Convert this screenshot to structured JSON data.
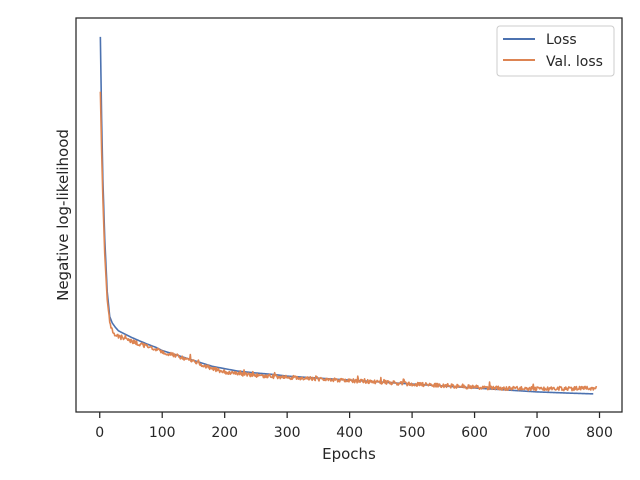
{
  "chart_data": {
    "type": "line",
    "title": "",
    "xlabel": "Epochs",
    "ylabel": "Negative log-likelihood",
    "xlim": [
      -38,
      836
    ],
    "ylim": [
      0,
      100
    ],
    "xticks": [
      0,
      100,
      200,
      300,
      400,
      500,
      600,
      700,
      800
    ],
    "xtick_labels": [
      "0",
      "100",
      "200",
      "300",
      "400",
      "500",
      "600",
      "700",
      "800"
    ],
    "yticks_shown": false,
    "grid": false,
    "legend_position": "top-right",
    "series": [
      {
        "name": "Loss",
        "color": "#4c72b0",
        "points": [
          [
            1,
            95.2
          ],
          [
            3,
            74.5
          ],
          [
            5,
            59.1
          ],
          [
            8,
            44.0
          ],
          [
            12,
            30.5
          ],
          [
            16,
            24.2
          ],
          [
            20,
            22.6
          ],
          [
            25,
            21.5
          ],
          [
            30,
            20.6
          ],
          [
            40,
            19.8
          ],
          [
            50,
            19.0
          ],
          [
            60,
            18.3
          ],
          [
            75,
            17.3
          ],
          [
            90,
            16.4
          ],
          [
            100,
            15.6
          ],
          [
            120,
            14.6
          ],
          [
            140,
            13.6
          ],
          [
            160,
            12.6
          ],
          [
            180,
            11.6
          ],
          [
            200,
            11.0
          ],
          [
            220,
            10.4
          ],
          [
            250,
            9.9
          ],
          [
            280,
            9.5
          ],
          [
            300,
            9.1
          ],
          [
            350,
            8.6
          ],
          [
            400,
            8.1
          ],
          [
            450,
            7.6
          ],
          [
            500,
            7.1
          ],
          [
            550,
            6.6
          ],
          [
            600,
            6.1
          ],
          [
            650,
            5.6
          ],
          [
            700,
            5.1
          ],
          [
            750,
            4.8
          ],
          [
            790,
            4.6
          ]
        ]
      },
      {
        "name": "Val. loss",
        "color": "#dd8452",
        "noise": 0.5,
        "points": [
          [
            1,
            81.3
          ],
          [
            3,
            66.4
          ],
          [
            5,
            54.3
          ],
          [
            8,
            40.1
          ],
          [
            12,
            28.5
          ],
          [
            16,
            22.9
          ],
          [
            20,
            20.6
          ],
          [
            25,
            19.5
          ],
          [
            30,
            19.1
          ],
          [
            40,
            18.6
          ],
          [
            50,
            18.0
          ],
          [
            60,
            17.5
          ],
          [
            75,
            16.6
          ],
          [
            90,
            15.9
          ],
          [
            100,
            15.2
          ],
          [
            120,
            14.4
          ],
          [
            140,
            13.4
          ],
          [
            160,
            12.2
          ],
          [
            180,
            11.0
          ],
          [
            200,
            10.2
          ],
          [
            220,
            9.7
          ],
          [
            250,
            9.3
          ],
          [
            280,
            9.0
          ],
          [
            300,
            8.8
          ],
          [
            350,
            8.4
          ],
          [
            400,
            8.0
          ],
          [
            450,
            7.6
          ],
          [
            500,
            7.1
          ],
          [
            550,
            6.7
          ],
          [
            600,
            6.3
          ],
          [
            650,
            6.0
          ],
          [
            700,
            5.9
          ],
          [
            750,
            5.9
          ],
          [
            790,
            6.1
          ],
          [
            795,
            6.5
          ]
        ]
      }
    ]
  }
}
